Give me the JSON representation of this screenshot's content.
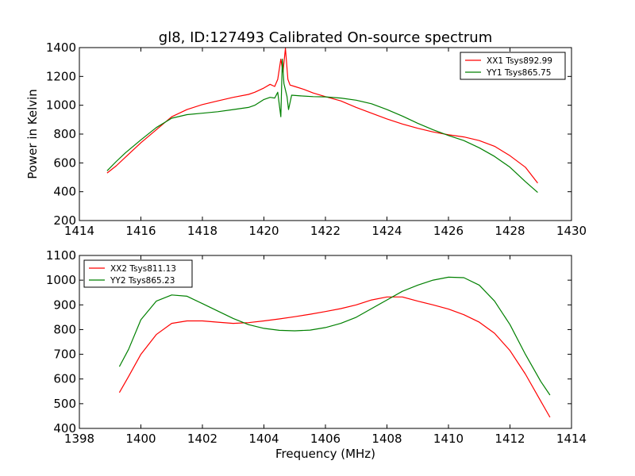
{
  "title": "gl8, ID:127493 Calibrated On-source spectrum",
  "chart_data": [
    {
      "type": "line",
      "title": "gl8, ID:127493 Calibrated On-source spectrum",
      "xlabel": "",
      "ylabel": "Power in Kelvin",
      "xlim": [
        1414,
        1430
      ],
      "ylim": [
        200,
        1400
      ],
      "xticks": [
        1414,
        1416,
        1418,
        1420,
        1422,
        1424,
        1426,
        1428,
        1430
      ],
      "yticks": [
        200,
        400,
        600,
        800,
        1000,
        1200,
        1400
      ],
      "grid": false,
      "legend": "top-right",
      "series": [
        {
          "name": "XX1 Tsys892.99",
          "color": "#ff0000",
          "points": [
            [
              1414.9,
              530
            ],
            [
              1415.2,
              580
            ],
            [
              1415.5,
              640
            ],
            [
              1416.0,
              740
            ],
            [
              1416.5,
              830
            ],
            [
              1417.0,
              920
            ],
            [
              1417.5,
              970
            ],
            [
              1418.0,
              1005
            ],
            [
              1418.5,
              1030
            ],
            [
              1419.0,
              1055
            ],
            [
              1419.5,
              1075
            ],
            [
              1419.7,
              1090
            ],
            [
              1420.0,
              1120
            ],
            [
              1420.2,
              1145
            ],
            [
              1420.35,
              1130
            ],
            [
              1420.45,
              1180
            ],
            [
              1420.55,
              1320
            ],
            [
              1420.62,
              1230
            ],
            [
              1420.7,
              1395
            ],
            [
              1420.78,
              1180
            ],
            [
              1420.85,
              1140
            ],
            [
              1421.0,
              1130
            ],
            [
              1421.3,
              1110
            ],
            [
              1421.6,
              1085
            ],
            [
              1422.0,
              1060
            ],
            [
              1422.5,
              1030
            ],
            [
              1423.0,
              985
            ],
            [
              1423.5,
              945
            ],
            [
              1424.0,
              905
            ],
            [
              1424.5,
              870
            ],
            [
              1425.0,
              840
            ],
            [
              1425.5,
              815
            ],
            [
              1426.0,
              795
            ],
            [
              1426.5,
              780
            ],
            [
              1427.0,
              755
            ],
            [
              1427.5,
              715
            ],
            [
              1428.0,
              650
            ],
            [
              1428.5,
              570
            ],
            [
              1428.9,
              460
            ]
          ]
        },
        {
          "name": "YY1 Tsys865.75",
          "color": "#008000",
          "points": [
            [
              1414.9,
              545
            ],
            [
              1415.2,
              610
            ],
            [
              1415.5,
              670
            ],
            [
              1416.0,
              760
            ],
            [
              1416.5,
              845
            ],
            [
              1417.0,
              910
            ],
            [
              1417.5,
              935
            ],
            [
              1418.0,
              945
            ],
            [
              1418.5,
              955
            ],
            [
              1419.0,
              970
            ],
            [
              1419.5,
              985
            ],
            [
              1419.7,
              1000
            ],
            [
              1420.0,
              1040
            ],
            [
              1420.2,
              1055
            ],
            [
              1420.35,
              1050
            ],
            [
              1420.45,
              1090
            ],
            [
              1420.55,
              920
            ],
            [
              1420.6,
              1320
            ],
            [
              1420.65,
              1150
            ],
            [
              1420.75,
              1060
            ],
            [
              1420.8,
              970
            ],
            [
              1420.9,
              1070
            ],
            [
              1421.2,
              1065
            ],
            [
              1421.6,
              1060
            ],
            [
              1422.0,
              1058
            ],
            [
              1422.5,
              1050
            ],
            [
              1423.0,
              1035
            ],
            [
              1423.5,
              1010
            ],
            [
              1424.0,
              970
            ],
            [
              1424.5,
              925
            ],
            [
              1425.0,
              875
            ],
            [
              1425.5,
              830
            ],
            [
              1426.0,
              790
            ],
            [
              1426.5,
              755
            ],
            [
              1427.0,
              705
            ],
            [
              1427.5,
              645
            ],
            [
              1428.0,
              570
            ],
            [
              1428.5,
              470
            ],
            [
              1428.9,
              395
            ]
          ]
        }
      ]
    },
    {
      "type": "line",
      "title": "",
      "xlabel": "Frequency (MHz)",
      "ylabel": "",
      "xlim": [
        1398,
        1414
      ],
      "ylim": [
        400,
        1100
      ],
      "xticks": [
        1398,
        1400,
        1402,
        1404,
        1406,
        1408,
        1410,
        1412,
        1414
      ],
      "yticks": [
        400,
        500,
        600,
        700,
        800,
        900,
        1000,
        1100
      ],
      "grid": false,
      "legend": "top-left",
      "series": [
        {
          "name": "XX2 Tsys811.13",
          "color": "#ff0000",
          "points": [
            [
              1399.3,
              545
            ],
            [
              1399.6,
              610
            ],
            [
              1400.0,
              700
            ],
            [
              1400.5,
              780
            ],
            [
              1401.0,
              825
            ],
            [
              1401.5,
              835
            ],
            [
              1402.0,
              835
            ],
            [
              1402.5,
              830
            ],
            [
              1403.0,
              825
            ],
            [
              1403.5,
              828
            ],
            [
              1404.0,
              835
            ],
            [
              1404.5,
              843
            ],
            [
              1405.0,
              852
            ],
            [
              1405.5,
              862
            ],
            [
              1406.0,
              873
            ],
            [
              1406.5,
              885
            ],
            [
              1407.0,
              900
            ],
            [
              1407.5,
              920
            ],
            [
              1408.0,
              932
            ],
            [
              1408.5,
              932
            ],
            [
              1409.0,
              915
            ],
            [
              1409.5,
              900
            ],
            [
              1410.0,
              883
            ],
            [
              1410.5,
              860
            ],
            [
              1411.0,
              830
            ],
            [
              1411.5,
              785
            ],
            [
              1412.0,
              715
            ],
            [
              1412.5,
              620
            ],
            [
              1413.0,
              510
            ],
            [
              1413.3,
              445
            ]
          ]
        },
        {
          "name": "YY2 Tsys865.23",
          "color": "#008000",
          "points": [
            [
              1399.3,
              650
            ],
            [
              1399.6,
              720
            ],
            [
              1400.0,
              840
            ],
            [
              1400.5,
              915
            ],
            [
              1401.0,
              940
            ],
            [
              1401.5,
              935
            ],
            [
              1402.0,
              905
            ],
            [
              1402.5,
              875
            ],
            [
              1403.0,
              845
            ],
            [
              1403.5,
              820
            ],
            [
              1404.0,
              805
            ],
            [
              1404.5,
              797
            ],
            [
              1405.0,
              795
            ],
            [
              1405.5,
              798
            ],
            [
              1406.0,
              808
            ],
            [
              1406.5,
              825
            ],
            [
              1407.0,
              850
            ],
            [
              1407.5,
              885
            ],
            [
              1408.0,
              920
            ],
            [
              1408.5,
              955
            ],
            [
              1409.0,
              980
            ],
            [
              1409.5,
              1000
            ],
            [
              1410.0,
              1012
            ],
            [
              1410.5,
              1010
            ],
            [
              1411.0,
              980
            ],
            [
              1411.5,
              915
            ],
            [
              1412.0,
              820
            ],
            [
              1412.5,
              700
            ],
            [
              1413.0,
              590
            ],
            [
              1413.3,
              535
            ]
          ]
        }
      ]
    }
  ]
}
